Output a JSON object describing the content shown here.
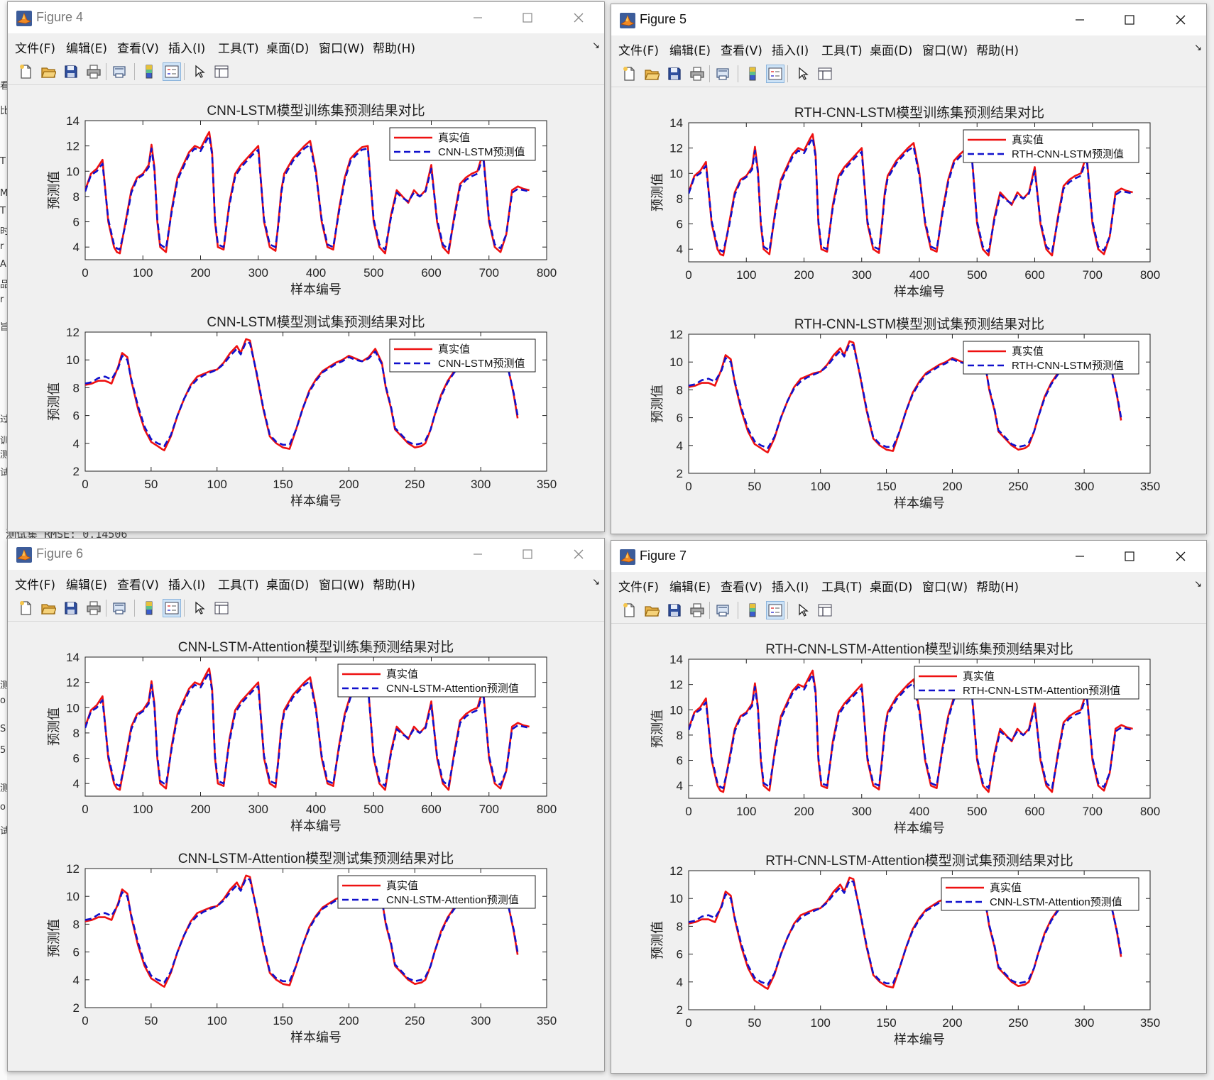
{
  "menu": [
    "文件(F)",
    "编辑(E)",
    "查看(V)",
    "插入(I)",
    "工具(T)",
    "桌面(D)",
    "窗口(W)",
    "帮助(H)"
  ],
  "background_text": {
    "console_line": "测试集 RMSE: 0.14506",
    "left_fragments": [
      "看",
      "比",
      "T",
      "M",
      "T",
      "时",
      "r",
      "A",
      "品",
      "r",
      "旨",
      "过",
      "训",
      "测",
      "试",
      "测",
      "o",
      "S",
      "5",
      "测",
      "o",
      "试"
    ]
  },
  "colors": {
    "real": "#ee1111",
    "pred": "#1010cc",
    "axis": "#222222"
  },
  "icons": [
    "new-file-icon",
    "open-folder-icon",
    "save-icon",
    "print-icon",
    "print-preview-icon",
    "colorbar-icon",
    "legend-icon",
    "pointer-icon",
    "property-inspector-icon"
  ],
  "windows": [
    {
      "title": "Figure 4",
      "charts": [
        {
          "title": "CNN-LSTM模型训练集预测结果对比",
          "xlabel": "样本编号",
          "ylabel": "预测值",
          "legend": [
            "真实值",
            "CNN-LSTM预测值"
          ]
        },
        {
          "title": "CNN-LSTM模型测试集预测结果对比",
          "xlabel": "样本编号",
          "ylabel": "预测值",
          "legend": [
            "真实值",
            "CNN-LSTM预测值"
          ]
        }
      ]
    },
    {
      "title": "Figure 5",
      "charts": [
        {
          "title": "RTH-CNN-LSTM模型训练集预测结果对比",
          "xlabel": "样本编号",
          "ylabel": "预测值",
          "legend": [
            "真实值",
            "RTH-CNN-LSTM预测值"
          ]
        },
        {
          "title": "RTH-CNN-LSTM模型测试集预测结果对比",
          "xlabel": "样本编号",
          "ylabel": "预测值",
          "legend": [
            "真实值",
            "RTH-CNN-LSTM预测值"
          ]
        }
      ]
    },
    {
      "title": "Figure 6",
      "charts": [
        {
          "title": "CNN-LSTM-Attention模型训练集预测结果对比",
          "xlabel": "样本编号",
          "ylabel": "预测值",
          "legend": [
            "真实值",
            "CNN-LSTM-Attention预测值"
          ]
        },
        {
          "title": "CNN-LSTM-Attention模型测试集预测结果对比",
          "xlabel": "样本编号",
          "ylabel": "预测值",
          "legend": [
            "真实值",
            "CNN-LSTM-Attention预测值"
          ]
        }
      ]
    },
    {
      "title": "Figure 7",
      "charts": [
        {
          "title": "RTH-CNN-LSTM-Attention模型训练集预测结果对比",
          "xlabel": "样本编号",
          "ylabel": "预测值",
          "legend": [
            "真实值",
            "RTH-CNN-LSTM-Attention预测值"
          ]
        },
        {
          "title": "RTH-CNN-LSTM-Attention模型测试集预测结果对比",
          "xlabel": "样本编号",
          "ylabel": "预测值",
          "legend": [
            "真实值",
            "CNN-LSTM-Attention预测值"
          ]
        }
      ]
    }
  ],
  "chart_data": [
    {
      "type": "line",
      "kind": "train",
      "xlim": [
        0,
        800
      ],
      "ylim": [
        3,
        14
      ],
      "xticks": [
        0,
        100,
        200,
        300,
        400,
        500,
        600,
        700,
        800
      ],
      "yticks": [
        4,
        6,
        8,
        10,
        12,
        14
      ],
      "legend_position": "top-right",
      "series": [
        {
          "name": "真实值",
          "color": "#ee1111",
          "style": "solid",
          "x": [
            0,
            10,
            20,
            30,
            40,
            50,
            55,
            60,
            70,
            80,
            90,
            100,
            110,
            115,
            120,
            125,
            130,
            140,
            150,
            160,
            170,
            180,
            190,
            200,
            210,
            215,
            220,
            225,
            230,
            240,
            250,
            260,
            270,
            280,
            290,
            300,
            310,
            320,
            330,
            335,
            340,
            345,
            350,
            360,
            370,
            380,
            390,
            400,
            410,
            420,
            430,
            440,
            450,
            460,
            470,
            480,
            490,
            500,
            510,
            520,
            530,
            540,
            550,
            560,
            570,
            580,
            590,
            600,
            610,
            620,
            630,
            640,
            650,
            660,
            670,
            680,
            690,
            700,
            710,
            720,
            730,
            740,
            750,
            760,
            770
          ],
          "y": [
            8.5,
            9.8,
            10.2,
            10.9,
            6.0,
            4.0,
            3.6,
            3.5,
            6.0,
            8.5,
            9.5,
            9.8,
            10.5,
            12.1,
            10.3,
            6.0,
            4.0,
            3.6,
            7.0,
            9.5,
            10.5,
            11.5,
            12.0,
            11.8,
            12.7,
            13.1,
            11.5,
            6.0,
            4.0,
            3.8,
            7.5,
            9.8,
            10.5,
            11.0,
            11.5,
            12.0,
            6.0,
            4.0,
            3.7,
            6.0,
            8.5,
            9.8,
            10.2,
            11.0,
            11.5,
            12.0,
            12.4,
            10.0,
            6.0,
            4.0,
            3.8,
            7.0,
            9.5,
            11.0,
            11.5,
            11.9,
            12.0,
            6.0,
            4.0,
            3.5,
            6.5,
            8.5,
            8.0,
            7.5,
            8.5,
            8.0,
            8.5,
            10.5,
            6.0,
            4.0,
            3.5,
            6.5,
            9.0,
            9.5,
            9.8,
            10.0,
            11.5,
            6.0,
            4.0,
            3.6,
            5.0,
            8.5,
            8.8,
            8.6,
            8.5
          ]
        },
        {
          "name": "CNN-LSTM预测值",
          "color": "#1010cc",
          "style": "dashed",
          "x": [
            0,
            10,
            20,
            30,
            40,
            50,
            55,
            60,
            70,
            80,
            90,
            100,
            110,
            115,
            120,
            125,
            130,
            140,
            150,
            160,
            170,
            180,
            190,
            200,
            210,
            215,
            220,
            225,
            230,
            240,
            250,
            260,
            270,
            280,
            290,
            300,
            310,
            320,
            330,
            335,
            340,
            345,
            350,
            360,
            370,
            380,
            390,
            400,
            410,
            420,
            430,
            440,
            450,
            460,
            470,
            480,
            490,
            500,
            510,
            520,
            530,
            540,
            550,
            560,
            570,
            580,
            590,
            600,
            610,
            620,
            630,
            640,
            650,
            660,
            670,
            680,
            690,
            700,
            710,
            720,
            730,
            740,
            750,
            760,
            770
          ],
          "y": [
            8.4,
            9.7,
            10.0,
            10.6,
            6.2,
            4.2,
            3.9,
            3.8,
            5.8,
            8.3,
            9.4,
            9.7,
            10.3,
            11.8,
            10.1,
            6.2,
            4.2,
            3.9,
            6.8,
            9.3,
            10.3,
            11.3,
            11.8,
            11.6,
            12.4,
            12.8,
            11.3,
            6.2,
            4.2,
            4.0,
            7.3,
            9.6,
            10.3,
            10.8,
            11.3,
            11.7,
            6.2,
            4.2,
            4.0,
            5.8,
            8.3,
            9.6,
            10.0,
            10.8,
            11.3,
            11.8,
            12.1,
            9.8,
            6.2,
            4.2,
            4.0,
            6.8,
            9.3,
            10.8,
            11.3,
            11.7,
            11.8,
            6.2,
            4.2,
            3.8,
            6.3,
            8.3,
            7.9,
            7.6,
            8.3,
            8.0,
            8.4,
            10.2,
            6.2,
            4.2,
            3.8,
            6.3,
            8.8,
            9.3,
            9.6,
            9.8,
            11.2,
            6.2,
            4.2,
            3.9,
            5.0,
            8.3,
            8.6,
            8.5,
            8.4
          ]
        }
      ]
    },
    {
      "type": "line",
      "kind": "test",
      "xlim": [
        0,
        350
      ],
      "ylim": [
        2,
        12
      ],
      "xticks": [
        0,
        50,
        100,
        150,
        200,
        250,
        300,
        350
      ],
      "yticks": [
        2,
        4,
        6,
        8,
        10,
        12
      ],
      "legend_position": "top-right",
      "series": [
        {
          "name": "真实值",
          "color": "#ee1111",
          "style": "solid",
          "x": [
            0,
            5,
            10,
            15,
            20,
            25,
            28,
            32,
            35,
            40,
            45,
            50,
            55,
            58,
            60,
            65,
            70,
            75,
            80,
            85,
            90,
            95,
            100,
            105,
            110,
            115,
            118,
            122,
            125,
            130,
            135,
            140,
            145,
            150,
            155,
            160,
            165,
            170,
            175,
            180,
            185,
            190,
            195,
            200,
            205,
            210,
            215,
            220,
            225,
            228,
            232,
            235,
            240,
            245,
            250,
            255,
            258,
            262,
            265,
            270,
            275,
            280,
            285,
            290,
            295,
            300,
            305,
            310,
            315,
            320,
            325,
            328
          ],
          "y": [
            8.2,
            8.3,
            8.5,
            8.5,
            8.3,
            9.5,
            10.5,
            10.2,
            8.5,
            6.5,
            5.0,
            4.1,
            3.8,
            3.6,
            3.5,
            4.5,
            6.0,
            7.2,
            8.2,
            8.8,
            9.0,
            9.2,
            9.3,
            9.8,
            10.5,
            11.0,
            10.5,
            11.5,
            11.4,
            9.0,
            6.5,
            4.5,
            4.0,
            3.7,
            3.6,
            5.0,
            6.5,
            7.8,
            8.6,
            9.2,
            9.5,
            9.8,
            10.0,
            10.3,
            10.1,
            9.9,
            10.2,
            10.8,
            9.8,
            8.0,
            6.5,
            5.0,
            4.5,
            4.0,
            3.7,
            3.8,
            4.0,
            5.0,
            6.0,
            7.5,
            8.5,
            9.2,
            9.6,
            9.8,
            9.9,
            10.0,
            10.2,
            10.3,
            10.1,
            9.8,
            7.5,
            5.8
          ]
        },
        {
          "name": "预测值",
          "color": "#1010cc",
          "style": "dashed",
          "x": [
            0,
            5,
            10,
            15,
            20,
            25,
            28,
            32,
            35,
            40,
            45,
            50,
            55,
            58,
            60,
            65,
            70,
            75,
            80,
            85,
            90,
            95,
            100,
            105,
            110,
            115,
            118,
            122,
            125,
            130,
            135,
            140,
            145,
            150,
            155,
            160,
            165,
            170,
            175,
            180,
            185,
            190,
            195,
            200,
            205,
            210,
            215,
            220,
            225,
            228,
            232,
            235,
            240,
            245,
            250,
            255,
            258,
            262,
            265,
            270,
            275,
            280,
            285,
            290,
            295,
            300,
            305,
            310,
            315,
            320,
            325,
            328
          ],
          "y": [
            8.3,
            8.4,
            8.7,
            8.8,
            8.6,
            9.4,
            10.3,
            10.0,
            8.6,
            6.7,
            5.2,
            4.3,
            4.0,
            3.9,
            3.8,
            4.6,
            6.0,
            7.2,
            8.1,
            8.6,
            8.9,
            9.1,
            9.3,
            9.7,
            10.3,
            10.8,
            10.4,
            11.3,
            11.2,
            9.1,
            6.6,
            4.6,
            4.1,
            3.9,
            3.9,
            5.0,
            6.5,
            7.7,
            8.5,
            9.1,
            9.4,
            9.7,
            9.9,
            10.2,
            10.0,
            9.9,
            10.1,
            10.6,
            9.7,
            8.1,
            6.6,
            5.1,
            4.6,
            4.1,
            3.9,
            4.0,
            4.2,
            5.0,
            6.0,
            7.4,
            8.4,
            9.1,
            9.5,
            9.7,
            9.8,
            9.9,
            10.1,
            10.2,
            10.0,
            9.7,
            7.6,
            6.0
          ]
        }
      ]
    }
  ]
}
